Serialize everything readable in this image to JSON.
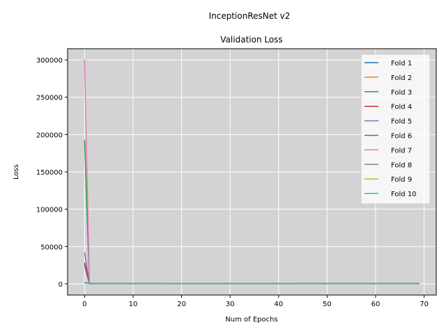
{
  "suptitle": "InceptionResNet v2",
  "chart_data": {
    "type": "line",
    "title": "Validation Loss",
    "xlabel": "Num of Epochs",
    "ylabel": "Loss",
    "xlim": [
      -3.5,
      72.5
    ],
    "ylim": [
      -15000,
      315000
    ],
    "grid": true,
    "legend": "top-right",
    "x_ticks": [
      0,
      10,
      20,
      30,
      40,
      50,
      60,
      70
    ],
    "y_ticks": [
      0,
      50000,
      100000,
      150000,
      200000,
      250000,
      300000
    ],
    "x_tick_labels": [
      "0",
      "10",
      "20",
      "30",
      "40",
      "50",
      "60",
      "70"
    ],
    "y_tick_labels": [
      "0",
      "50000",
      "100000",
      "150000",
      "200000",
      "250000",
      "300000"
    ],
    "series": [
      {
        "name": "Fold 1",
        "color": "#1f77b4",
        "points": [
          [
            0,
            2000
          ],
          [
            1,
            500
          ],
          [
            69,
            300
          ]
        ]
      },
      {
        "name": "Fold 2",
        "color": "#ff7f0e",
        "points": [
          [
            0,
            1500
          ],
          [
            1,
            400
          ],
          [
            69,
            300
          ]
        ]
      },
      {
        "name": "Fold 3",
        "color": "#2ca02c",
        "points": [
          [
            0,
            193000
          ],
          [
            1,
            600
          ],
          [
            69,
            300
          ]
        ]
      },
      {
        "name": "Fold 4",
        "color": "#d62728",
        "points": [
          [
            0,
            28000
          ],
          [
            1,
            500
          ],
          [
            69,
            300
          ]
        ]
      },
      {
        "name": "Fold 5",
        "color": "#9467bd",
        "points": [
          [
            0,
            42000
          ],
          [
            1,
            500
          ],
          [
            69,
            300
          ]
        ]
      },
      {
        "name": "Fold 6",
        "color": "#8c564b",
        "points": [
          [
            0,
            25000
          ],
          [
            1,
            500
          ],
          [
            69,
            300
          ]
        ]
      },
      {
        "name": "Fold 7",
        "color": "#e377c2",
        "points": [
          [
            0,
            301000
          ],
          [
            1,
            800
          ],
          [
            69,
            300
          ]
        ]
      },
      {
        "name": "Fold 8",
        "color": "#7f7f7f",
        "points": [
          [
            0,
            1000
          ],
          [
            1,
            400
          ],
          [
            69,
            300
          ]
        ]
      },
      {
        "name": "Fold 9",
        "color": "#bcbd22",
        "points": [
          [
            0,
            1200
          ],
          [
            1,
            400
          ],
          [
            69,
            300
          ]
        ]
      },
      {
        "name": "Fold 10",
        "color": "#17becf",
        "points": [
          [
            0,
            1800
          ],
          [
            1,
            400
          ],
          [
            69,
            300
          ]
        ]
      }
    ]
  }
}
